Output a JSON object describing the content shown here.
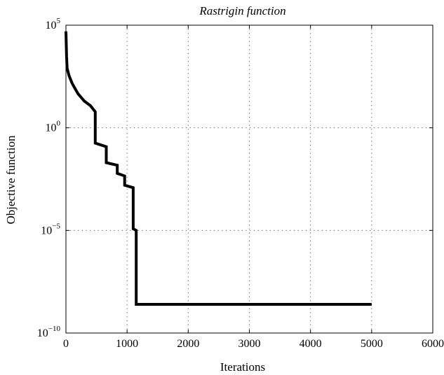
{
  "chart_data": {
    "type": "line",
    "title": "Rastrigin function",
    "xlabel": "Iterations",
    "ylabel": "Objective function",
    "xlim": [
      0,
      6000
    ],
    "ylim": [
      1e-10,
      100000
    ],
    "yscale": "log",
    "grid": true,
    "x_ticks": [
      "0",
      "1000",
      "2000",
      "3000",
      "4000",
      "5000",
      "6000"
    ],
    "y_ticks": [
      {
        "base": "10",
        "exp": "−10"
      },
      {
        "base": "10",
        "exp": "−5"
      },
      {
        "base": "10",
        "exp": "0"
      },
      {
        "base": "10",
        "exp": "5"
      }
    ],
    "series": [
      {
        "type": "step",
        "color": "#000000",
        "x": [
          0,
          10,
          20,
          50,
          100,
          150,
          200,
          300,
          400,
          480,
          480,
          660,
          660,
          840,
          840,
          960,
          960,
          1100,
          1100,
          1150,
          1150,
          5000
        ],
        "y": [
          50000,
          3000,
          800,
          350,
          150,
          80,
          45,
          20,
          12,
          6,
          0.18,
          0.12,
          0.02,
          0.015,
          0.006,
          0.0045,
          0.0016,
          0.0012,
          1.2e-05,
          1e-05,
          2.5e-09,
          2.5e-09
        ]
      }
    ]
  }
}
